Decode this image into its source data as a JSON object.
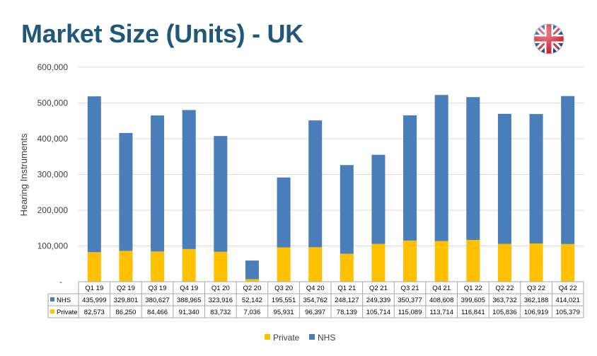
{
  "page": {
    "title": "Market Size (Units) - UK",
    "flag_icon": "uk-flag-icon"
  },
  "chart_data": {
    "type": "bar",
    "stacked": true,
    "ylabel": "Hearing Instruments",
    "ylim": [
      0,
      600000
    ],
    "yticks": [
      0,
      100000,
      200000,
      300000,
      400000,
      500000,
      600000
    ],
    "ytick_labels": [
      "-",
      "100,000",
      "200,000",
      "300,000",
      "400,000",
      "500,000",
      "600,000"
    ],
    "grid": true,
    "legend_position": "bottom",
    "categories": [
      "Q1 19",
      "Q2 19",
      "Q3 19",
      "Q4 19",
      "Q1 20",
      "Q2 20",
      "Q3 20",
      "Q4 20",
      "Q1 21",
      "Q2 21",
      "Q3 21",
      "Q4 21",
      "Q1 22",
      "Q2 22",
      "Q3 22",
      "Q4 22"
    ],
    "series": [
      {
        "name": "Private",
        "color": "#ffc000",
        "values": [
          82573,
          86250,
          84466,
          91340,
          83732,
          7036,
          95931,
          96397,
          78139,
          105714,
          115089,
          113714,
          116841,
          105836,
          106919,
          105379
        ],
        "labels": [
          "82,573",
          "86,250",
          "84,466",
          "91,340",
          "83,732",
          "7,036",
          "95,931",
          "96,397",
          "78,139",
          "105,714",
          "115,089",
          "113,714",
          "116,841",
          "105,836",
          "106,919",
          "105,379"
        ]
      },
      {
        "name": "NHS",
        "color": "#4a7ebb",
        "values": [
          435999,
          329801,
          380627,
          388965,
          323916,
          52142,
          195551,
          354762,
          248127,
          249339,
          350377,
          408608,
          399605,
          363732,
          362188,
          414021
        ],
        "labels": [
          "435,999",
          "329,801",
          "380,627",
          "388,965",
          "323,916",
          "52,142",
          "195,551",
          "354,762",
          "248,127",
          "249,339",
          "350,377",
          "408,608",
          "399,605",
          "363,732",
          "362,188",
          "414,021"
        ]
      }
    ]
  }
}
